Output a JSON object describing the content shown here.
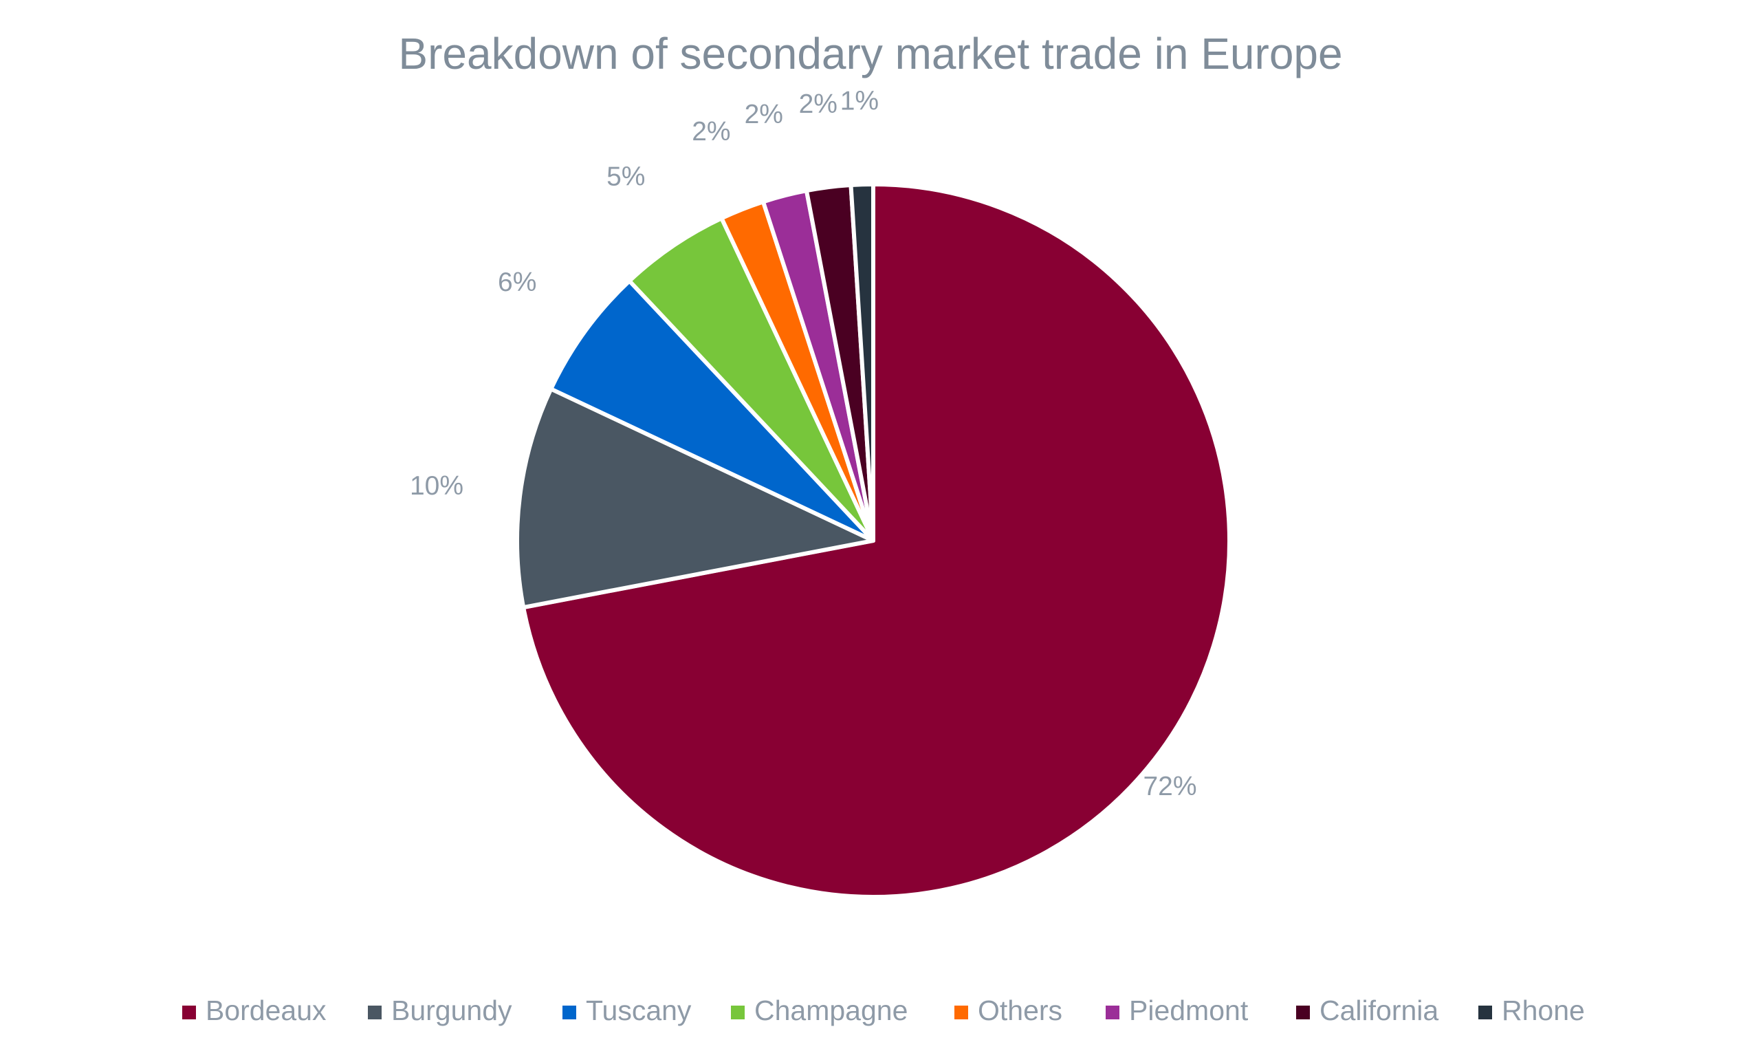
{
  "chart_data": {
    "type": "pie",
    "title": "Breakdown of secondary market trade in Europe",
    "categories": [
      "Bordeaux",
      "Burgundy",
      "Tuscany",
      "Champagne",
      "Others",
      "Piedmont",
      "California",
      "Rhone"
    ],
    "values": [
      72,
      10,
      6,
      5,
      2,
      2,
      2,
      1
    ],
    "data_labels": [
      "72%",
      "10%",
      "6%",
      "5%",
      "2%",
      "2%",
      "2%",
      "1%"
    ],
    "colors": [
      "#880033",
      "#4a5763",
      "#0066cc",
      "#77c63b",
      "#ff6a00",
      "#9b2e98",
      "#4a0022",
      "#26333f"
    ],
    "start_angle": "12 o'clock",
    "direction": "clockwise",
    "legend": "bottom",
    "grid": false
  }
}
